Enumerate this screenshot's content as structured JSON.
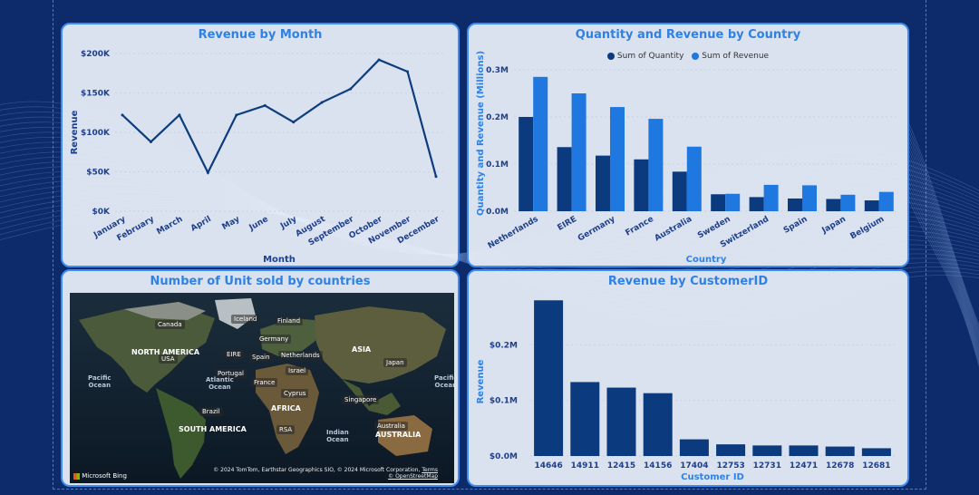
{
  "colors": {
    "background": "#0d2a6b",
    "panel": "#e8eef8",
    "accent": "#2f82e4",
    "dark_series": "#0b3a7e",
    "light_series": "#1f78e0",
    "line": "#0c3d7e"
  },
  "panels": {
    "revenue_by_month": {
      "title": "Revenue by Month"
    },
    "qty_rev_country": {
      "title": "Quantity and Revenue by Country"
    },
    "units_map": {
      "title": "Number of Unit sold by countries"
    },
    "revenue_by_customer": {
      "title": "Revenue by CustomerID"
    }
  },
  "map": {
    "markers": [
      "Canada",
      "Iceland",
      "Finland",
      "Germany",
      "USA",
      "EIRE",
      "Spain",
      "Netherlands",
      "Portugal",
      "Israel",
      "France",
      "Cyprus",
      "Japan",
      "Brazil",
      "Singapore",
      "RSA",
      "Australia"
    ],
    "regions": [
      "NORTH AMERICA",
      "SOUTH AMERICA",
      "AFRICA",
      "ASIA",
      "AUSTRALIA"
    ],
    "oceans": [
      "Pacific\nOcean",
      "Atlantic\nOcean",
      "Indian\nOcean",
      "Pacific\nOcean"
    ],
    "logo": "Microsoft Bing",
    "attribution_line1": "© 2024 TomTom, Earthstar Geographics SIO, © 2024 Microsoft Corporation,",
    "attribution_terms": "Terms",
    "attribution_line2": "© OpenStreetMap"
  },
  "chart_data": [
    {
      "type": "line",
      "title": "Revenue by Month",
      "xlabel": "Month",
      "ylabel": "Revenue",
      "categories": [
        "January",
        "February",
        "March",
        "April",
        "May",
        "June",
        "July",
        "August",
        "September",
        "October",
        "November",
        "December"
      ],
      "values": [
        122000,
        88000,
        122000,
        49000,
        122000,
        134000,
        113000,
        138000,
        155000,
        192000,
        177000,
        44000
      ],
      "ylim": [
        0,
        200000
      ],
      "yticks": [
        "$0K",
        "$50K",
        "$100K",
        "$150K",
        "$200K"
      ],
      "grid": true
    },
    {
      "type": "bar",
      "title": "Quantity and Revenue by Country",
      "xlabel": "Country",
      "ylabel": "Quantity and Revenue (Millions)",
      "categories": [
        "Netherlands",
        "EIRE",
        "Germany",
        "France",
        "Australia",
        "Sweden",
        "Switzerland",
        "Spain",
        "Japan",
        "Belgium"
      ],
      "series": [
        {
          "name": "Sum of Quantity",
          "values": [
            0.2,
            0.136,
            0.118,
            0.11,
            0.084,
            0.036,
            0.03,
            0.027,
            0.026,
            0.023
          ]
        },
        {
          "name": "Sum of Revenue",
          "values": [
            0.285,
            0.25,
            0.221,
            0.196,
            0.137,
            0.037,
            0.056,
            0.055,
            0.035,
            0.041
          ]
        }
      ],
      "ylim": [
        0,
        0.3
      ],
      "yticks": [
        "0.0M",
        "0.1M",
        "0.2M",
        "0.3M"
      ],
      "legend": "top-center",
      "grid": true
    },
    {
      "type": "bar",
      "title": "Revenue by CustomerID",
      "xlabel": "Customer ID",
      "ylabel": "Revenue",
      "categories": [
        "14646",
        "14911",
        "12415",
        "14156",
        "17404",
        "12753",
        "12731",
        "12471",
        "12678",
        "12681"
      ],
      "values": [
        0.28,
        0.133,
        0.123,
        0.113,
        0.03,
        0.021,
        0.019,
        0.019,
        0.017,
        0.014
      ],
      "ylim": [
        0,
        0.3
      ],
      "yticks": [
        "$0.0M",
        "$0.1M",
        "$0.2M"
      ],
      "grid": true
    }
  ]
}
